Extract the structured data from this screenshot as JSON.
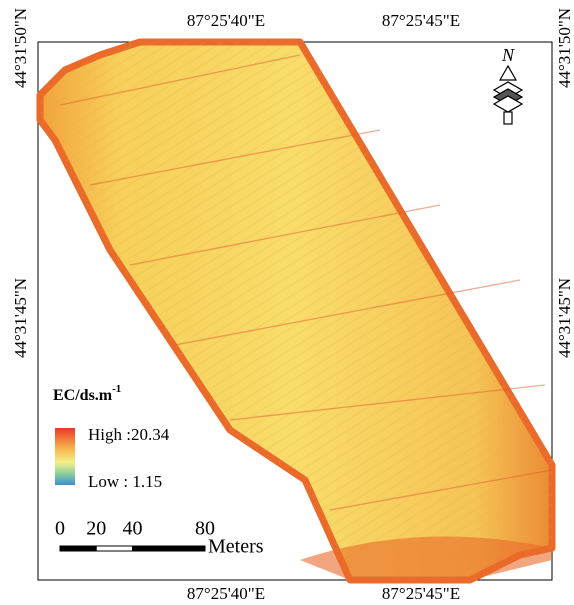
{
  "map": {
    "x_labels_top": [
      "87°25'40\"E",
      "87°25'45\"E"
    ],
    "x_labels_bottom": [
      "87°25'40\"E",
      "87°25'45\"E"
    ],
    "y_labels_left": [
      "44°31'50\"N",
      "44°31'45\"N"
    ],
    "y_labels_right": [
      "44°31'50\"N",
      "44°31'45\"N"
    ],
    "north": "N",
    "legend": {
      "title": "EC/ds.m",
      "title_sup": "-1",
      "high": "High :20.34",
      "low": "Low : 1.15"
    },
    "scale_bar": {
      "ticks": [
        0,
        20,
        40,
        80
      ],
      "unit": "Meters"
    }
  }
}
